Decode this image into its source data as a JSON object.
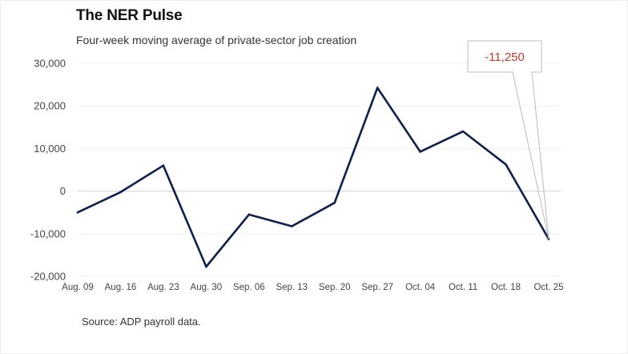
{
  "header": {
    "title": "The NER Pulse",
    "subtitle": "Four-week moving average of private-sector job creation"
  },
  "footer": {
    "source": "Source: ADP payroll data."
  },
  "chart_data": {
    "type": "line",
    "title": "The NER Pulse",
    "subtitle": "Four-week moving average of private-sector job creation",
    "xlabel": "",
    "ylabel": "",
    "categories": [
      "Aug. 09",
      "Aug. 16",
      "Aug. 23",
      "Aug. 30",
      "Sep. 06",
      "Sep. 13",
      "Sep. 20",
      "Sep. 27",
      "Oct. 04",
      "Oct. 11",
      "Oct. 18",
      "Oct. 25"
    ],
    "series": [
      {
        "values": [
          -5000,
          -250,
          6000,
          -17750,
          -5500,
          -8250,
          -2750,
          24250,
          9250,
          14000,
          6250,
          -11250
        ]
      }
    ],
    "ylim": [
      -20000,
      30000
    ],
    "yticks": [
      -20000,
      -10000,
      0,
      10000,
      20000,
      30000
    ],
    "ytick_labels": [
      "-20,000",
      "-10,000",
      "0",
      "10,000",
      "20,000",
      "30,000"
    ],
    "grid": true,
    "legend": "none",
    "line_color": "#0d1f4e",
    "annotation": {
      "label": "-11,250",
      "point": "Oct. 25",
      "color": "#c0392b"
    }
  }
}
